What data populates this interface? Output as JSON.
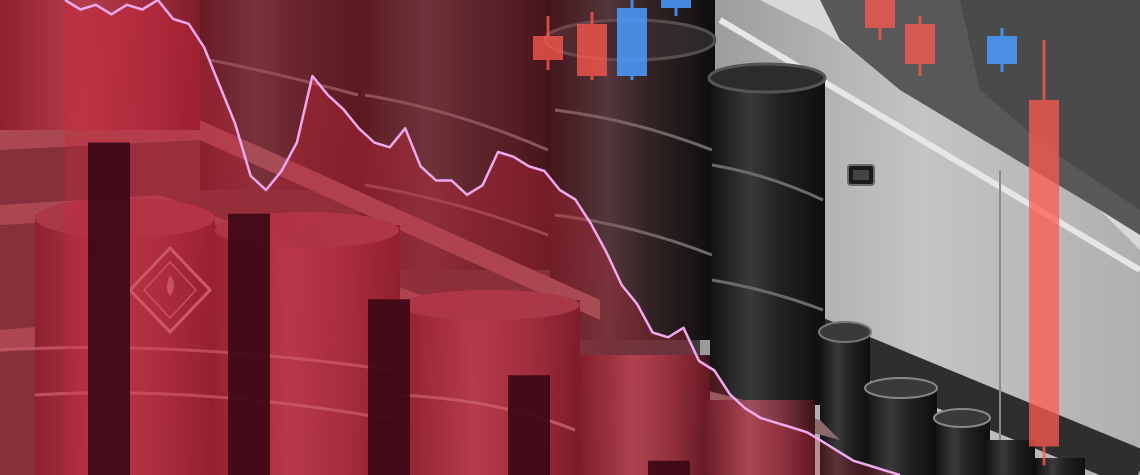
{
  "image": {
    "subject": "oil-barrel-warehouse-with-falling-market-chart-overlay"
  },
  "colors": {
    "tint_red": "#c8283c",
    "tint_dark": "#3a0a14",
    "wall_grey": "#b8b8b8",
    "barrel_black": "#1c1c1c",
    "price_line": "#f0a8ee",
    "candle_red": "#ff5a4e",
    "candle_blue": "#4a9cff",
    "bar_dark": "#3c0815",
    "hazmat_diamond": "#d8b4b8"
  },
  "chart_data": {
    "type": "line",
    "title": "",
    "xlabel": "",
    "ylabel": "",
    "ylim": [
      0,
      100
    ],
    "series": [
      {
        "name": "price-line",
        "values": [
          100,
          98,
          99,
          97,
          99,
          98,
          100,
          96,
          95,
          90,
          82,
          74,
          63,
          60,
          64,
          70,
          84,
          80,
          77,
          73,
          70,
          69,
          73,
          65,
          62,
          62,
          59,
          61,
          68,
          67,
          65,
          64,
          60,
          58,
          53,
          47,
          40,
          36,
          30,
          29,
          31,
          24,
          22,
          17,
          14,
          12,
          11,
          10,
          9,
          7,
          5,
          3,
          2,
          1,
          0
        ]
      }
    ],
    "volume_bars": [
      70,
      55,
      37,
      21,
      3
    ],
    "candles": [
      {
        "color": "red",
        "open": 82,
        "close": 70,
        "high": 92,
        "low": 65
      },
      {
        "color": "red",
        "open": 88,
        "close": 62,
        "high": 94,
        "low": 60
      },
      {
        "color": "blue",
        "open": 62,
        "close": 96,
        "high": 100,
        "low": 60
      },
      {
        "color": "blue",
        "open": 96,
        "close": 100,
        "high": 100,
        "low": 92
      },
      {
        "color": "red",
        "open": 100,
        "close": 86,
        "high": 100,
        "low": 80
      },
      {
        "color": "red",
        "open": 88,
        "close": 68,
        "high": 92,
        "low": 62
      },
      {
        "color": "blue",
        "open": 68,
        "close": 82,
        "high": 86,
        "low": 64
      },
      {
        "color": "red",
        "open": 78,
        "close": 6,
        "high": 80,
        "low": 2
      }
    ]
  }
}
